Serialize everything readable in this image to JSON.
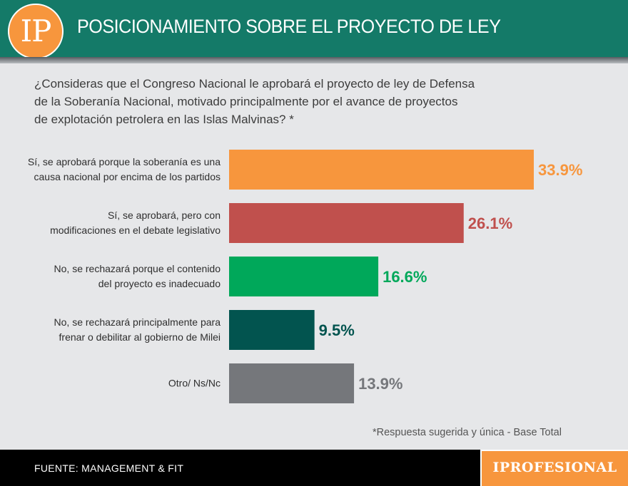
{
  "header": {
    "logo_text": "IP",
    "title": "POSICIONAMIENTO SOBRE EL PROYECTO DE LEY"
  },
  "question": [
    "¿Consideras que el Congreso Nacional le aprobará el proyecto de ley de Defensa",
    "de la Soberanía Nacional, motivado principalmente por el avance de proyectos",
    "de explotación petrolera en las Islas Malvinas? *"
  ],
  "chart_data": {
    "type": "bar",
    "orientation": "horizontal",
    "categories": [
      [
        "Sí, se aprobará porque la soberanía es una",
        "causa nacional por encima de los partidos"
      ],
      [
        "Sí, se aprobará, pero con",
        "modificaciones en el debate legislativo"
      ],
      [
        "No, se rechazará porque el contenido",
        "del proyecto es inadecuado"
      ],
      [
        "No, se rechazará principalmente para",
        "frenar o debilitar al gobierno de Milei"
      ],
      [
        "Otro/ Ns/Nc"
      ]
    ],
    "values": [
      33.9,
      26.1,
      16.6,
      9.5,
      13.9
    ],
    "value_labels": [
      "33.9%",
      "26.1%",
      "16.6%",
      "9.5%",
      "13.9%"
    ],
    "colors": [
      "#f7963d",
      "#c0504d",
      "#00a85a",
      "#02544f",
      "#75777b"
    ],
    "xlim": [
      0,
      40
    ],
    "grid": false,
    "legend": "none"
  },
  "note": "*Respuesta sugerida y única - Base Total",
  "footer": {
    "source": "FUENTE: MANAGEMENT & FIT",
    "brand": "IPROFESIONAL"
  }
}
